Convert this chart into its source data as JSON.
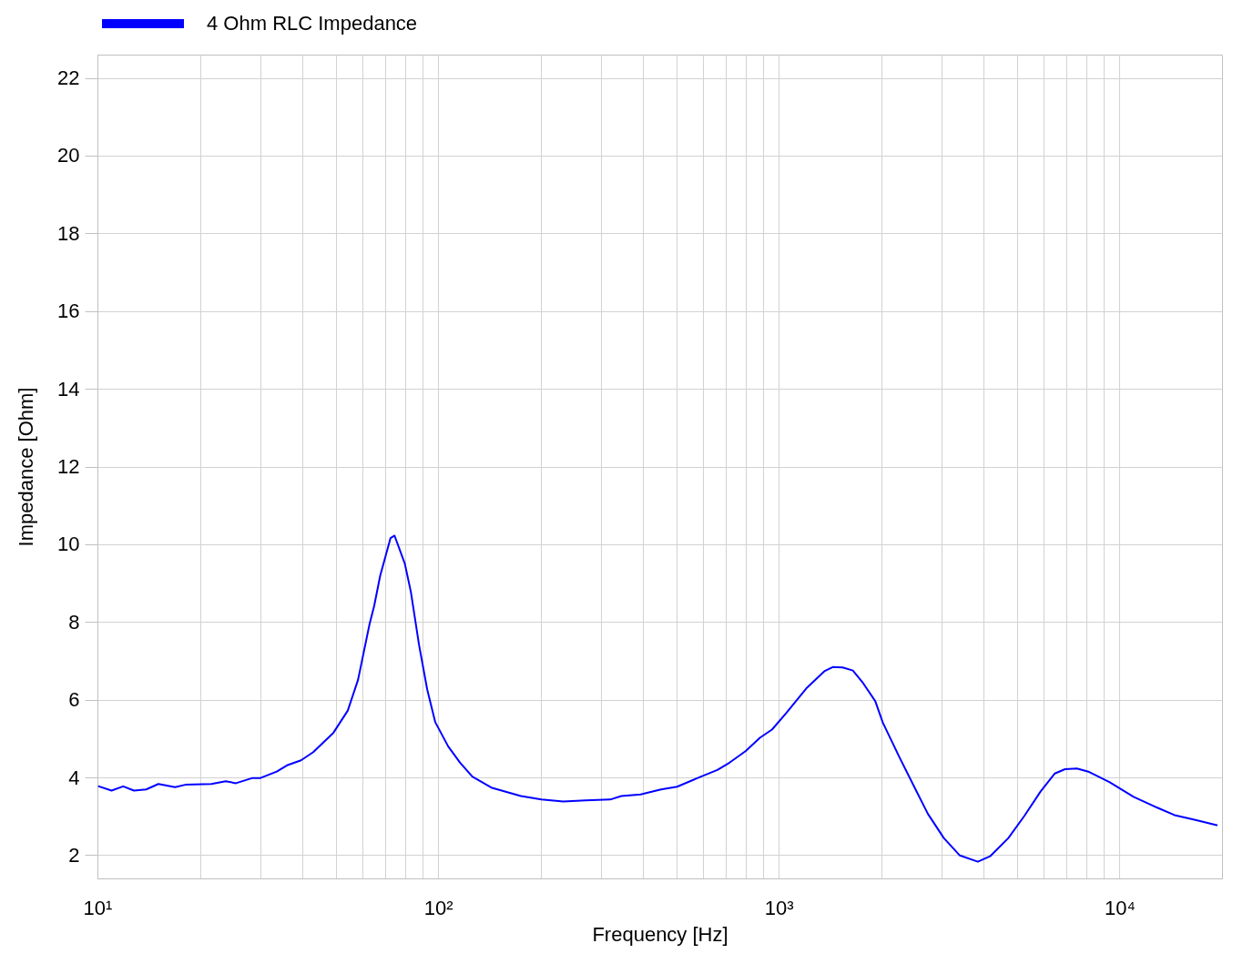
{
  "chart_data": {
    "type": "line",
    "xlabel": "Frequency [Hz]",
    "ylabel": "Impedance [Ohm]",
    "log": "x",
    "grid": true,
    "legend": "top left",
    "xlim": [
      10,
      20000
    ],
    "xticks": [
      {
        "value": 10,
        "label": "10¹"
      },
      {
        "value": 20,
        "label": null
      },
      {
        "value": 30,
        "label": null
      },
      {
        "value": 40,
        "label": null
      },
      {
        "value": 50,
        "label": null
      },
      {
        "value": 60,
        "label": null
      },
      {
        "value": 70,
        "label": null
      },
      {
        "value": 80,
        "label": null
      },
      {
        "value": 90,
        "label": null
      },
      {
        "value": 100,
        "label": "10²"
      },
      {
        "value": 200,
        "label": null
      },
      {
        "value": 300,
        "label": null
      },
      {
        "value": 400,
        "label": null
      },
      {
        "value": 500,
        "label": null
      },
      {
        "value": 600,
        "label": null
      },
      {
        "value": 700,
        "label": null
      },
      {
        "value": 800,
        "label": null
      },
      {
        "value": 900,
        "label": null
      },
      {
        "value": 1000,
        "label": "10³"
      },
      {
        "value": 2000,
        "label": null
      },
      {
        "value": 3000,
        "label": null
      },
      {
        "value": 4000,
        "label": null
      },
      {
        "value": 5000,
        "label": null
      },
      {
        "value": 6000,
        "label": null
      },
      {
        "value": 7000,
        "label": null
      },
      {
        "value": 8000,
        "label": null
      },
      {
        "value": 9000,
        "label": null
      },
      {
        "value": 10000,
        "label": "10⁴"
      }
    ],
    "ylim": [
      1.4,
      22.6
    ],
    "yticks": [
      2,
      4,
      6,
      8,
      10,
      12,
      14,
      16,
      18,
      20,
      22
    ],
    "x": [
      10.1,
      11.0,
      11.9,
      12.8,
      13.9,
      15.1,
      16.9,
      18.1,
      21.6,
      23.8,
      25.5,
      28.4,
      30.0,
      33.6,
      36.0,
      39.6,
      43.0,
      49.3,
      54.3,
      58.2,
      62.9,
      64.9,
      67.6,
      72.5,
      74.5,
      79.8,
      83.2,
      87.9,
      92.9,
      98.1,
      107,
      116,
      126,
      144,
      175,
      201,
      233,
      271,
      320,
      345,
      393,
      451,
      503,
      576,
      660,
      717,
      800,
      880,
      955,
      1050,
      1210,
      1360,
      1440,
      1540,
      1650,
      1770,
      1920,
      2020,
      2260,
      2520,
      2740,
      3050,
      3400,
      3840,
      4170,
      4720,
      5260,
      5870,
      6460,
      6920,
      7500,
      8150,
      9340,
      11000,
      13000,
      14500,
      16600,
      19300
    ],
    "series": [
      {
        "name": "4 Ohm RLC Impedance",
        "color": "#0000ff",
        "values": [
          3.77,
          3.66,
          3.77,
          3.66,
          3.69,
          3.83,
          3.75,
          3.81,
          3.83,
          3.9,
          3.85,
          3.98,
          3.98,
          4.15,
          4.31,
          4.44,
          4.65,
          5.15,
          5.72,
          6.51,
          7.94,
          8.41,
          9.19,
          10.16,
          10.22,
          9.51,
          8.77,
          7.41,
          6.26,
          5.42,
          4.8,
          4.38,
          4.02,
          3.73,
          3.52,
          3.43,
          3.38,
          3.41,
          3.43,
          3.52,
          3.56,
          3.69,
          3.76,
          3.98,
          4.19,
          4.38,
          4.68,
          5.02,
          5.23,
          5.65,
          6.31,
          6.73,
          6.84,
          6.83,
          6.75,
          6.42,
          5.96,
          5.41,
          4.52,
          3.69,
          3.06,
          2.44,
          1.99,
          1.83,
          1.97,
          2.44,
          3.01,
          3.64,
          4.1,
          4.21,
          4.23,
          4.14,
          3.88,
          3.5,
          3.21,
          3.03,
          2.91,
          2.77
        ]
      }
    ]
  }
}
